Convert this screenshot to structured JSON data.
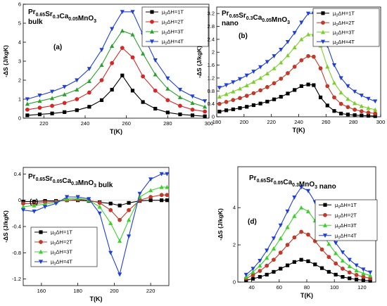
{
  "chart_data": [
    {
      "type": "line",
      "panel_label": "(a)",
      "title": "Pr0.65Sr0.3Ca0.05MnO3",
      "title_parts": {
        "base": "Pr",
        "s1": "0.65",
        "b2": "Sr",
        "s2": "0.3",
        "b3": "Ca",
        "s3": "0.05",
        "b4": "MnO",
        "s4": "3"
      },
      "subtitle": "bulk",
      "xlabel": "T(K)",
      "ylabel": "-ΔS (J/kgK)",
      "xlim": [
        210,
        300
      ],
      "ylim": [
        0,
        6
      ],
      "xticks": [
        220,
        240,
        260,
        280,
        300
      ],
      "yticks": [
        0,
        1,
        2,
        3,
        4,
        5,
        6
      ],
      "grid": false,
      "legend": "top-right",
      "series": [
        {
          "name": "μ0ΔH=1T",
          "color": "#000000",
          "marker": "square",
          "x": [
            212,
            218,
            224,
            230,
            236,
            242,
            248,
            253,
            258,
            263,
            268,
            274,
            280,
            286,
            292,
            298
          ],
          "values": [
            0.15,
            0.2,
            0.25,
            0.32,
            0.42,
            0.6,
            0.95,
            1.5,
            2.25,
            1.45,
            0.85,
            0.5,
            0.3,
            0.2,
            0.15,
            0.1
          ]
        },
        {
          "name": "μ0ΔH=2T",
          "color": "#d62728",
          "marker": "circle",
          "x": [
            212,
            218,
            224,
            230,
            236,
            242,
            248,
            253,
            258,
            263,
            268,
            274,
            280,
            286,
            292,
            298
          ],
          "values": [
            0.45,
            0.55,
            0.65,
            0.8,
            1.0,
            1.35,
            2.0,
            2.9,
            3.7,
            3.2,
            2.2,
            1.45,
            0.95,
            0.65,
            0.45,
            0.35
          ]
        },
        {
          "name": "μ0ΔH=3T",
          "color": "#2ca02c",
          "marker": "triangle",
          "x": [
            212,
            218,
            224,
            230,
            236,
            242,
            248,
            253,
            258,
            263,
            268,
            274,
            280,
            286,
            292,
            298
          ],
          "values": [
            0.75,
            0.9,
            1.05,
            1.25,
            1.5,
            1.95,
            2.8,
            3.8,
            4.6,
            4.4,
            3.4,
            2.3,
            1.55,
            1.1,
            0.8,
            0.6
          ]
        },
        {
          "name": "μ0ΔH=4T",
          "color": "#1f3fd6",
          "marker": "triangle-down",
          "x": [
            212,
            218,
            224,
            230,
            236,
            242,
            248,
            253,
            258,
            263,
            268,
            274,
            280,
            286,
            292,
            298
          ],
          "values": [
            1.0,
            1.2,
            1.4,
            1.65,
            2.0,
            2.6,
            3.6,
            4.7,
            5.6,
            5.6,
            4.4,
            3.05,
            2.1,
            1.5,
            1.15,
            0.9
          ]
        }
      ]
    },
    {
      "type": "line",
      "panel_label": "(b)",
      "title": "Pr0.65Sr0.3Ca0.05MnO3",
      "title_parts": {
        "base": "Pr",
        "s1": "0.65",
        "b2": "Sr",
        "s2": "0.3",
        "b3": "Ca",
        "s3": "0.05",
        "b4": "MnO",
        "s4": "3"
      },
      "subtitle": "nano",
      "xlabel": "T(K)",
      "ylabel": "-ΔS (J/kgK)",
      "xlim": [
        180,
        300
      ],
      "ylim": [
        0,
        3.4
      ],
      "xticks": [
        180,
        200,
        220,
        240,
        260,
        280,
        300
      ],
      "yticks": [
        0.0,
        0.4,
        0.8,
        1.2,
        1.6,
        2.0,
        2.4,
        2.8,
        3.2
      ],
      "grid": false,
      "legend": "top-right",
      "series": [
        {
          "name": "μ0ΔH=1T",
          "color": "#000000",
          "marker": "square",
          "x": [
            182,
            187,
            192,
            197,
            202,
            207,
            212,
            217,
            222,
            227,
            232,
            237,
            242,
            247,
            251,
            256,
            261,
            266,
            271,
            276,
            281,
            286,
            291,
            296
          ],
          "values": [
            0.16,
            0.2,
            0.23,
            0.27,
            0.31,
            0.36,
            0.41,
            0.47,
            0.54,
            0.62,
            0.72,
            0.83,
            0.95,
            1.0,
            0.98,
            0.6,
            0.35,
            0.18,
            0.1,
            0.07,
            0.05,
            0.04,
            0.03,
            0.02
          ]
        },
        {
          "name": "μ0ΔH=2T",
          "color": "#c0392b",
          "marker": "circle",
          "x": [
            182,
            187,
            192,
            197,
            202,
            207,
            212,
            217,
            222,
            227,
            232,
            237,
            242,
            247,
            251,
            256,
            261,
            266,
            271,
            276,
            281,
            286,
            291,
            296
          ],
          "values": [
            0.4,
            0.46,
            0.52,
            0.58,
            0.65,
            0.73,
            0.82,
            0.92,
            1.04,
            1.18,
            1.35,
            1.55,
            1.75,
            1.88,
            1.86,
            1.5,
            0.95,
            0.6,
            0.4,
            0.3,
            0.22,
            0.17,
            0.13,
            0.1
          ]
        },
        {
          "name": "μ0ΔH=3T",
          "color": "#7ccf2b",
          "marker": "triangle",
          "x": [
            182,
            187,
            192,
            197,
            202,
            207,
            212,
            217,
            222,
            227,
            232,
            237,
            242,
            247,
            251,
            256,
            261,
            266,
            271,
            276,
            281,
            286,
            291,
            296
          ],
          "values": [
            0.62,
            0.7,
            0.78,
            0.87,
            0.97,
            1.08,
            1.2,
            1.34,
            1.5,
            1.68,
            1.9,
            2.15,
            2.4,
            2.55,
            2.55,
            2.2,
            1.55,
            1.05,
            0.75,
            0.55,
            0.42,
            0.33,
            0.27,
            0.22
          ]
        },
        {
          "name": "μ0ΔH=4T",
          "color": "#1f3fd6",
          "marker": "triangle-down",
          "x": [
            182,
            187,
            192,
            197,
            202,
            207,
            212,
            217,
            222,
            227,
            232,
            237,
            242,
            247,
            251,
            256,
            261,
            266,
            271,
            276,
            281,
            286,
            291,
            296
          ],
          "values": [
            0.9,
            0.98,
            1.07,
            1.17,
            1.28,
            1.4,
            1.54,
            1.7,
            1.88,
            2.08,
            2.32,
            2.6,
            2.92,
            3.2,
            3.2,
            2.85,
            2.2,
            1.6,
            1.2,
            0.95,
            0.78,
            0.66,
            0.56,
            0.48
          ]
        }
      ]
    },
    {
      "type": "line",
      "panel_label": "(c)",
      "title": "Pr0.65Sr0.05Ca0.3MnO3 bulk",
      "title_parts": {
        "base": "Pr",
        "s1": "0.65",
        "b2": "Sr",
        "s2": "0.05",
        "b3": "Ca",
        "s3": "0.3",
        "b4": "MnO",
        "s4": "3",
        "tail": " bulk"
      },
      "xlabel": "T(K)",
      "ylabel": "-ΔS (J/kgK)",
      "xlim": [
        150,
        230
      ],
      "ylim": [
        -1.3,
        0.5
      ],
      "xticks": [
        160,
        180,
        200,
        220
      ],
      "yticks": [
        -1.2,
        -0.8,
        -0.4,
        0.0,
        0.4
      ],
      "grid": false,
      "legend": "bottom-left",
      "series": [
        {
          "name": "μ0ΔH=1T",
          "color": "#000000",
          "marker": "square",
          "x": [
            150,
            156,
            162,
            168,
            174,
            180,
            186,
            192,
            198,
            203,
            208,
            214,
            220,
            226,
            229
          ],
          "values": [
            -0.02,
            -0.02,
            -0.01,
            -0.01,
            0.0,
            0.0,
            -0.01,
            -0.03,
            -0.05,
            -0.08,
            -0.04,
            -0.01,
            0.0,
            0.0,
            0.0
          ]
        },
        {
          "name": "μ0ΔH=2T",
          "color": "#c0392b",
          "marker": "circle",
          "x": [
            150,
            156,
            162,
            168,
            174,
            180,
            186,
            192,
            198,
            203,
            208,
            214,
            220,
            226,
            229
          ],
          "values": [
            -0.05,
            -0.05,
            -0.03,
            -0.02,
            0.0,
            0.01,
            0.0,
            -0.04,
            -0.15,
            -0.3,
            -0.15,
            0.0,
            0.05,
            0.08,
            0.08
          ]
        },
        {
          "name": "μ0ΔH=3T",
          "color": "#3cd02c",
          "marker": "triangle",
          "x": [
            150,
            156,
            162,
            168,
            174,
            180,
            186,
            192,
            198,
            203,
            208,
            214,
            220,
            226,
            229
          ],
          "values": [
            -0.1,
            -0.08,
            -0.06,
            -0.03,
            0.02,
            0.03,
            0.0,
            -0.1,
            -0.35,
            -0.62,
            -0.3,
            0.05,
            0.15,
            0.2,
            0.2
          ]
        },
        {
          "name": "μ0ΔH=4T",
          "color": "#1f3fd6",
          "marker": "triangle-down",
          "x": [
            150,
            156,
            162,
            168,
            174,
            180,
            186,
            192,
            198,
            203,
            208,
            214,
            220,
            226,
            229
          ],
          "values": [
            -0.15,
            -0.17,
            -0.1,
            -0.05,
            0.05,
            0.05,
            0.02,
            -0.2,
            -0.8,
            -1.13,
            -0.55,
            0.1,
            0.32,
            0.4,
            0.4
          ]
        }
      ]
    },
    {
      "type": "line",
      "panel_label": "(d)",
      "title": "Pr0.65Sr0.05Ca0.3MnO3 nano",
      "title_parts": {
        "base": "Pr",
        "s1": "0.65",
        "b2": "Sr",
        "s2": "0.05",
        "b3": "Ca",
        "s3": "0.3",
        "b4": "MnO",
        "s4": "3",
        "tail": " nano"
      },
      "xlabel": "T(K)",
      "ylabel": "-ΔS (J/kgK)",
      "xlim": [
        30,
        130
      ],
      "ylim": [
        0,
        6.2
      ],
      "xticks": [
        40,
        60,
        80,
        100,
        120
      ],
      "yticks": [
        0,
        2,
        4
      ],
      "grid": false,
      "legend": "top-right",
      "series": [
        {
          "name": "μ0ΔH=1T",
          "color": "#000000",
          "marker": "square",
          "x": [
            36,
            41,
            46,
            51,
            56,
            61,
            66,
            71,
            76,
            81,
            86,
            91,
            96,
            101,
            106,
            111,
            116,
            121,
            126
          ],
          "values": [
            0.1,
            0.18,
            0.28,
            0.4,
            0.55,
            0.72,
            0.9,
            1.08,
            1.2,
            1.12,
            0.95,
            0.75,
            0.55,
            0.4,
            0.28,
            0.2,
            0.14,
            0.1,
            0.07
          ]
        },
        {
          "name": "μ0ΔH=2T",
          "color": "#c0392b",
          "marker": "circle",
          "x": [
            36,
            41,
            46,
            51,
            56,
            61,
            66,
            71,
            76,
            81,
            86,
            91,
            96,
            101,
            106,
            111,
            116,
            121,
            126
          ],
          "values": [
            0.2,
            0.38,
            0.6,
            0.88,
            1.2,
            1.58,
            2.0,
            2.4,
            2.7,
            2.55,
            2.2,
            1.75,
            1.35,
            1.0,
            0.72,
            0.52,
            0.38,
            0.28,
            0.2
          ]
        },
        {
          "name": "μ0ΔH=3T",
          "color": "#3cd02c",
          "marker": "triangle",
          "x": [
            36,
            41,
            46,
            51,
            56,
            61,
            66,
            71,
            76,
            81,
            86,
            91,
            96,
            101,
            106,
            111,
            116,
            121,
            126
          ],
          "values": [
            0.28,
            0.55,
            0.88,
            1.3,
            1.8,
            2.35,
            2.95,
            3.55,
            4.0,
            3.8,
            3.3,
            2.65,
            2.05,
            1.55,
            1.15,
            0.85,
            0.62,
            0.46,
            0.35
          ]
        },
        {
          "name": "μ0ΔH=4T",
          "color": "#1f3fd6",
          "marker": "triangle-down",
          "x": [
            36,
            41,
            46,
            51,
            56,
            61,
            66,
            71,
            76,
            81,
            86,
            91,
            96,
            101,
            106,
            111,
            116,
            121,
            126
          ],
          "values": [
            0.4,
            0.72,
            1.15,
            1.7,
            2.35,
            3.05,
            3.8,
            4.55,
            5.1,
            4.9,
            4.3,
            3.5,
            2.75,
            2.1,
            1.6,
            1.2,
            0.9,
            0.68,
            0.52
          ]
        }
      ]
    }
  ]
}
